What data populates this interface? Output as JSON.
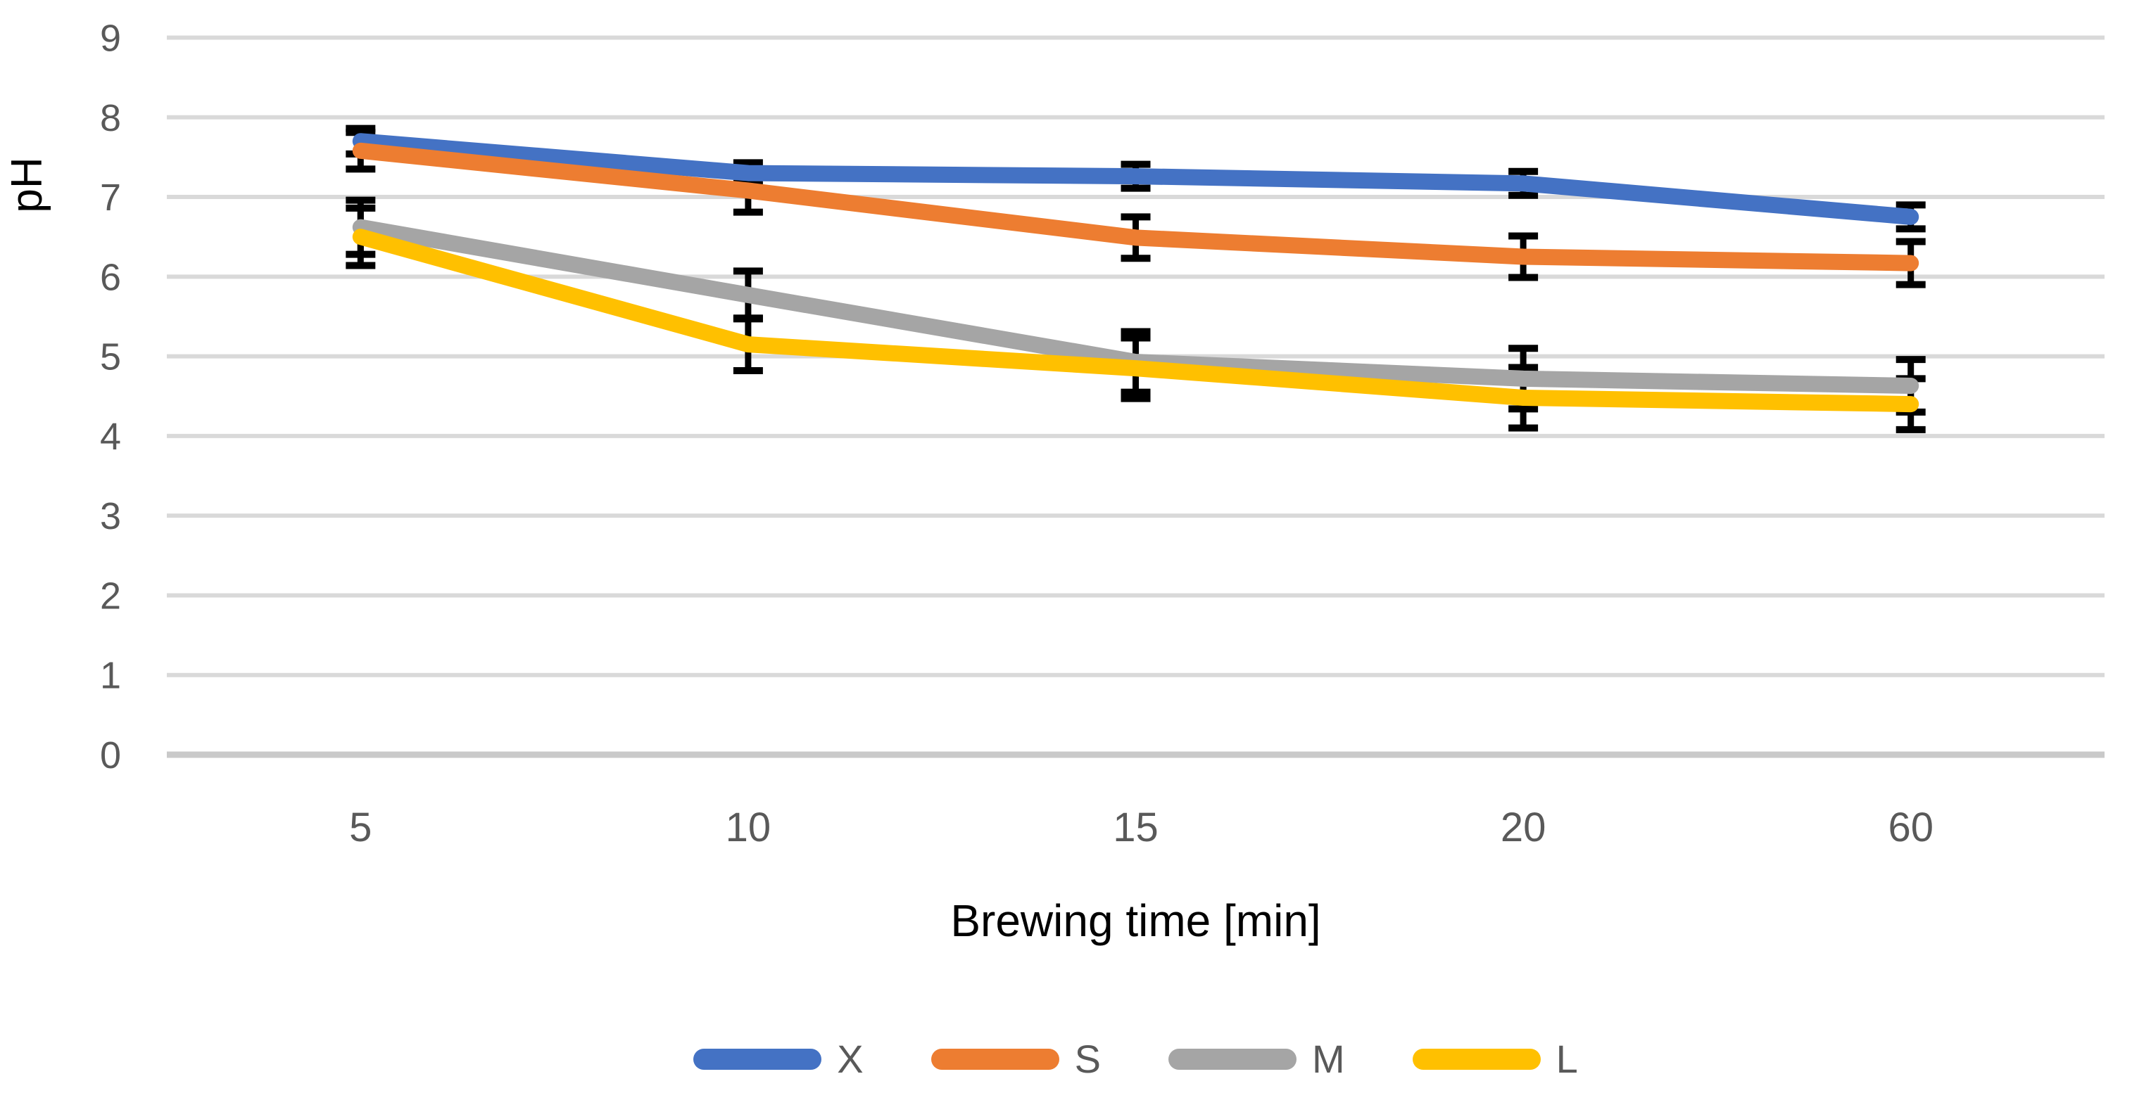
{
  "chart_data": {
    "type": "line",
    "title": "",
    "xlabel": "Brewing time [min]",
    "ylabel": "pH",
    "categories": [
      "5",
      "10",
      "15",
      "20",
      "60"
    ],
    "series": [
      {
        "name": "X",
        "color": "#4472C4",
        "values": [
          7.7,
          7.3,
          7.26,
          7.17,
          6.75
        ],
        "errors": [
          0.16,
          0.13,
          0.15,
          0.15,
          0.15
        ]
      },
      {
        "name": "S",
        "color": "#ED7D31",
        "values": [
          7.58,
          7.08,
          6.49,
          6.25,
          6.17
        ],
        "errors": [
          0.23,
          0.27,
          0.26,
          0.26,
          0.27
        ]
      },
      {
        "name": "M",
        "color": "#A5A5A5",
        "values": [
          6.62,
          5.77,
          4.93,
          4.72,
          4.63
        ],
        "errors": [
          0.34,
          0.3,
          0.38,
          0.38,
          0.33
        ]
      },
      {
        "name": "L",
        "color": "#FFC000",
        "values": [
          6.5,
          5.15,
          4.85,
          4.48,
          4.4
        ],
        "errors": [
          0.36,
          0.33,
          0.38,
          0.38,
          0.32
        ]
      }
    ],
    "ylim": [
      0,
      9
    ],
    "ytick_step": 1,
    "yticks": [
      "0",
      "1",
      "2",
      "3",
      "4",
      "5",
      "6",
      "7",
      "8",
      "9"
    ],
    "grid": true,
    "gridline_color": "#d9d9d9",
    "axis_line_color": "#c9c9c9",
    "error_bar_color": "#000000",
    "tick_label_color": "#595959",
    "legend_position": "bottom",
    "legend_labels": [
      "X",
      "S",
      "M",
      "L"
    ]
  }
}
